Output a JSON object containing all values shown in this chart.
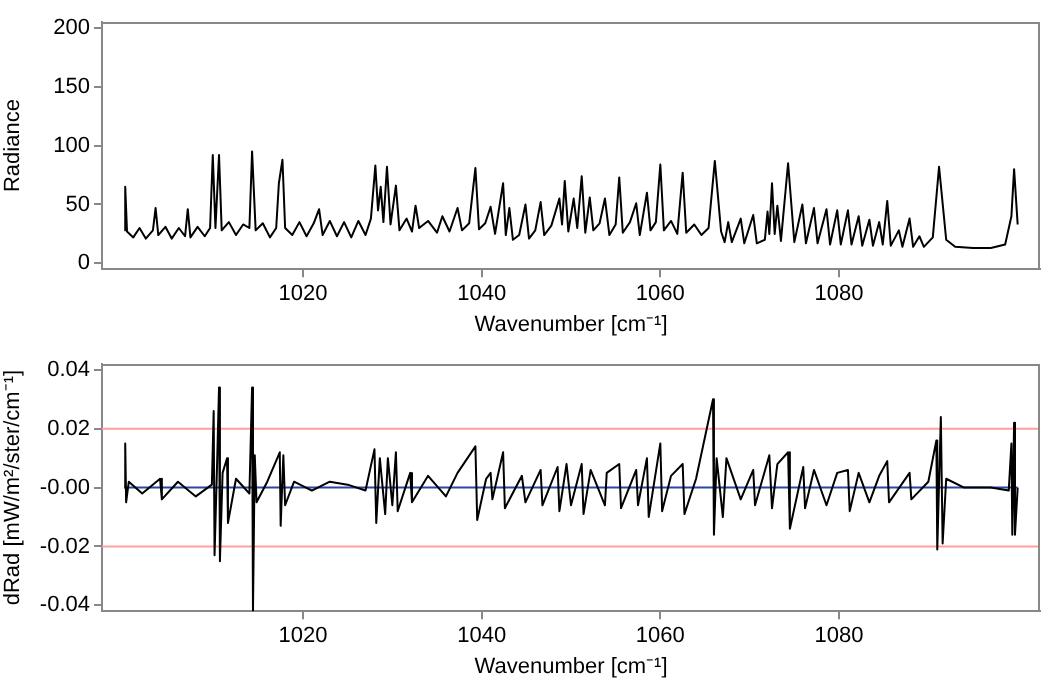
{
  "chart_data": [
    {
      "type": "line",
      "xlabel": "Wavenumber [cm⁻¹]",
      "ylabel": "Radiance",
      "xlim": [
        997.5,
        1102.5
      ],
      "xticks": [
        1020,
        1040,
        1060,
        1080
      ],
      "ylim": [
        -5,
        205
      ],
      "yticks": [
        0,
        50,
        100,
        150,
        200
      ],
      "series": [
        {
          "color": "#000000",
          "x": [
            1000,
            1000.1,
            1000.3,
            1001,
            1001.7,
            1002.4,
            1003.2,
            1003.5,
            1003.8,
            1004.6,
            1005.3,
            1006.1,
            1006.8,
            1007.1,
            1007.4,
            1008.2,
            1009,
            1009.6,
            1009.9,
            1010.2,
            1010.6,
            1010.9,
            1011.7,
            1012.5,
            1013.3,
            1014,
            1014.3,
            1014.7,
            1015.5,
            1016.3,
            1017,
            1017.3,
            1017.7,
            1018,
            1018.8,
            1019.6,
            1020.4,
            1021.2,
            1021.8,
            1022.2,
            1023,
            1023.8,
            1024.6,
            1025.4,
            1026.2,
            1027,
            1027.6,
            1028.1,
            1028.4,
            1028.7,
            1029,
            1029.4,
            1029.8,
            1030.4,
            1030.8,
            1031.6,
            1032.2,
            1032.6,
            1033,
            1034,
            1035,
            1035.6,
            1036.4,
            1037.3,
            1037.8,
            1038.6,
            1039.3,
            1039.7,
            1040.4,
            1041,
            1041.5,
            1042.4,
            1042.7,
            1043.1,
            1043.5,
            1044.2,
            1044.9,
            1045.3,
            1046,
            1046.6,
            1047,
            1047.8,
            1048.7,
            1049,
            1049.3,
            1049.7,
            1050.3,
            1050.7,
            1051.2,
            1051.6,
            1052.1,
            1052.5,
            1053.2,
            1053.8,
            1054.3,
            1055,
            1055.4,
            1055.8,
            1056.6,
            1057.3,
            1057.7,
            1058.5,
            1058.9,
            1059.5,
            1060,
            1060.4,
            1061.2,
            1061.9,
            1062.5,
            1062.9,
            1063.8,
            1064.6,
            1065.4,
            1066.1,
            1066.8,
            1067.2,
            1067.6,
            1068,
            1069,
            1069.4,
            1070.4,
            1070.8,
            1071.7,
            1072,
            1072.2,
            1072.5,
            1072.8,
            1073.1,
            1073.5,
            1074.3,
            1075,
            1075.9,
            1076.3,
            1077.2,
            1077.6,
            1078.6,
            1079,
            1079.8,
            1080.2,
            1081,
            1081.4,
            1082.2,
            1082.6,
            1083.4,
            1083.8,
            1084.5,
            1084.9,
            1085.4,
            1085.8,
            1086.7,
            1087.1,
            1087.9,
            1088.3,
            1089,
            1089.5,
            1090.5,
            1091.2,
            1092,
            1093,
            1095,
            1097,
            1098.6,
            1099.3,
            1099.6,
            1100
          ],
          "values": [
            28,
            65,
            27,
            22,
            30,
            21,
            28,
            47,
            24,
            31,
            21,
            30,
            23,
            46,
            22,
            31,
            23,
            30,
            92,
            30,
            92,
            28,
            35,
            24,
            33,
            30,
            95,
            28,
            34,
            22,
            30,
            68,
            88,
            30,
            24,
            35,
            23,
            34,
            46,
            24,
            36,
            23,
            35,
            22,
            36,
            24,
            38,
            83,
            45,
            65,
            35,
            82,
            33,
            66,
            28,
            38,
            27,
            49,
            30,
            36,
            26,
            40,
            27,
            47,
            28,
            34,
            81,
            29,
            34,
            48,
            25,
            68,
            24,
            47,
            20,
            24,
            50,
            21,
            28,
            52,
            24,
            32,
            55,
            33,
            70,
            27,
            55,
            30,
            74,
            26,
            56,
            28,
            34,
            55,
            24,
            33,
            73,
            26,
            35,
            51,
            24,
            60,
            28,
            35,
            84,
            28,
            36,
            25,
            77,
            26,
            33,
            24,
            30,
            87,
            27,
            18,
            35,
            18,
            38,
            17,
            41,
            17,
            20,
            44,
            25,
            68,
            25,
            49,
            19,
            85,
            18,
            50,
            17,
            47,
            17,
            46,
            16,
            45,
            16,
            45,
            16,
            40,
            15,
            37,
            15,
            35,
            16,
            53,
            15,
            28,
            14,
            38,
            14,
            23,
            14,
            22,
            82,
            20,
            14,
            13,
            13,
            16,
            40,
            80,
            33
          ]
        }
      ]
    },
    {
      "type": "line",
      "xlabel": "Wavenumber [cm⁻¹]",
      "ylabel": "dRad [mW/m²/ster/cm⁻¹]",
      "xlim": [
        997.5,
        1102.5
      ],
      "xticks": [
        1020,
        1040,
        1060,
        1080
      ],
      "ylim": [
        -0.042,
        0.042
      ],
      "yticks": [
        0.04,
        0.02,
        {
          "value": 0,
          "label": "-0.00"
        },
        -0.02,
        -0.04
      ],
      "ref_lines": [
        {
          "axis": "y",
          "value": 0.02,
          "color": "#ff9f9f"
        },
        {
          "axis": "y",
          "value": -0.02,
          "color": "#ff9f9f"
        }
      ],
      "series": [
        {
          "color": "#000000",
          "x": [
            1000,
            1000.1,
            1000.2,
            1000.5,
            1002,
            1004,
            1004.2,
            1006,
            1008,
            1009.8,
            1010,
            1010.1,
            1010.4,
            1010.6,
            1010.7,
            1011,
            1011.5,
            1011.6,
            1012.5,
            1014,
            1014.3,
            1014.4,
            1014.6,
            1014.8,
            1016,
            1017.4,
            1017.5,
            1017.8,
            1018,
            1019,
            1021,
            1023,
            1025,
            1027,
            1028,
            1028.2,
            1028.6,
            1029.2,
            1029.5,
            1030,
            1030.4,
            1030.6,
            1032,
            1032.2,
            1034,
            1036,
            1037.3,
            1039.3,
            1039.5,
            1040.5,
            1041,
            1041.2,
            1042.4,
            1042.6,
            1044.5,
            1044.9,
            1046.6,
            1046.8,
            1048.5,
            1048.7,
            1049.5,
            1050,
            1051.2,
            1051.4,
            1052.2,
            1053.8,
            1054,
            1055.4,
            1055.6,
            1057.3,
            1057.5,
            1058.5,
            1058.7,
            1060,
            1060.2,
            1061.2,
            1062.5,
            1062.7,
            1064,
            1065.9,
            1066,
            1066.3,
            1067,
            1067.4,
            1069,
            1070.4,
            1070.6,
            1072.2,
            1072.5,
            1073.1,
            1074.3,
            1074.5,
            1076,
            1076.2,
            1077.2,
            1078.6,
            1079.8,
            1081,
            1081.2,
            1082.2,
            1083.4,
            1084.5,
            1085.4,
            1085.6,
            1087.9,
            1088.1,
            1090,
            1090.9,
            1091,
            1091.4,
            1091.6,
            1092,
            1094,
            1097,
            1099,
            1099.3,
            1099.4,
            1099.6,
            1099.7,
            1100
          ],
          "values": [
            0,
            0.015,
            -0.005,
            0.002,
            -0.002,
            0.003,
            -0.004,
            0.002,
            -0.003,
            0.001,
            0.026,
            -0.023,
            0.01,
            0.034,
            -0.025,
            0.005,
            0.01,
            -0.012,
            0.003,
            -0.002,
            0.034,
            -0.042,
            0.011,
            -0.005,
            0.002,
            0.012,
            -0.013,
            0.011,
            -0.006,
            0.002,
            -0.001,
            0.002,
            0.001,
            -0.001,
            0.013,
            -0.012,
            0.01,
            -0.009,
            0.01,
            -0.006,
            0.012,
            -0.008,
            0.005,
            -0.005,
            0.004,
            -0.003,
            0.005,
            0.014,
            -0.011,
            0.003,
            0.005,
            -0.004,
            0.012,
            -0.007,
            0.004,
            -0.005,
            0.006,
            -0.006,
            0.007,
            -0.008,
            0.008,
            -0.006,
            0.008,
            -0.009,
            0.006,
            -0.006,
            0.005,
            0.008,
            -0.007,
            0.006,
            -0.006,
            0.01,
            -0.01,
            0.015,
            -0.008,
            0.004,
            0.008,
            -0.009,
            0.003,
            0.03,
            -0.016,
            0.01,
            -0.01,
            0.01,
            -0.004,
            0.006,
            -0.006,
            0.011,
            -0.007,
            0.008,
            0.012,
            -0.014,
            0.007,
            -0.007,
            0.006,
            -0.006,
            0.005,
            0.006,
            -0.008,
            0.005,
            -0.005,
            0.004,
            0.009,
            -0.005,
            0.005,
            -0.004,
            0.002,
            0.016,
            -0.021,
            0.024,
            -0.019,
            0.003,
            0,
            0,
            -0.001,
            0.015,
            -0.016,
            0.022,
            -0.016,
            0
          ]
        },
        {
          "color": "#2a46a0",
          "x": [
            1000,
            1025,
            1050,
            1075,
            1100
          ],
          "values": [
            0,
            0,
            0,
            0,
            0
          ]
        }
      ]
    }
  ]
}
